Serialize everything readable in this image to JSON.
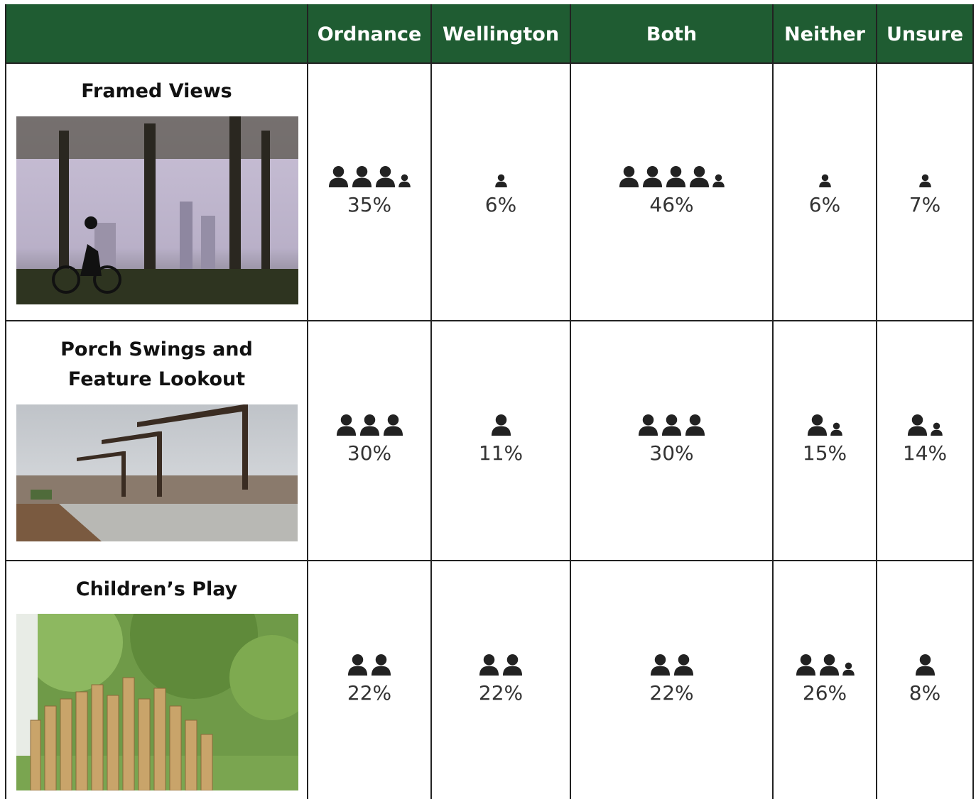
{
  "table": {
    "header": [
      "Ordnance",
      "Wellington",
      "Both",
      "Neither",
      "Unsure"
    ],
    "rows": [
      {
        "label": "Framed Views",
        "cells": [
          {
            "value": 35,
            "label": "35%"
          },
          {
            "value": 6,
            "label": "6%"
          },
          {
            "value": 46,
            "label": "46%"
          },
          {
            "value": 6,
            "label": "6%"
          },
          {
            "value": 7,
            "label": "7%"
          }
        ]
      },
      {
        "label": "Porch Swings and Feature Lookout",
        "cells": [
          {
            "value": 30,
            "label": "30%"
          },
          {
            "value": 11,
            "label": "11%"
          },
          {
            "value": 30,
            "label": "30%"
          },
          {
            "value": 15,
            "label": "15%"
          },
          {
            "value": 14,
            "label": "14%"
          }
        ]
      },
      {
        "label": "Children’s Play",
        "cells": [
          {
            "value": 22,
            "label": "22%"
          },
          {
            "value": 22,
            "label": "22%"
          },
          {
            "value": 22,
            "label": "22%"
          },
          {
            "value": 26,
            "label": "26%"
          },
          {
            "value": 8,
            "label": "8%"
          }
        ]
      }
    ]
  }
}
